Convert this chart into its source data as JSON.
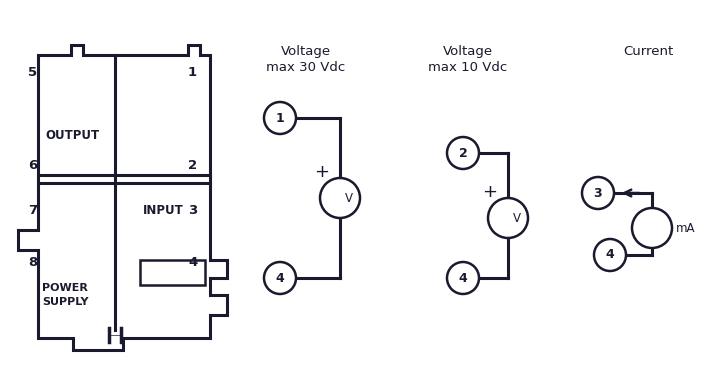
{
  "bg_color": "#ffffff",
  "line_color": "#1a1a2e",
  "title_voltage1": "Voltage\nmax 30 Vdc",
  "title_voltage2": "Voltage\nmax 10 Vdc",
  "title_current": "Current",
  "font_size_title": 9.5,
  "font_size_labels": 8.5,
  "font_size_numbers": 9.5
}
